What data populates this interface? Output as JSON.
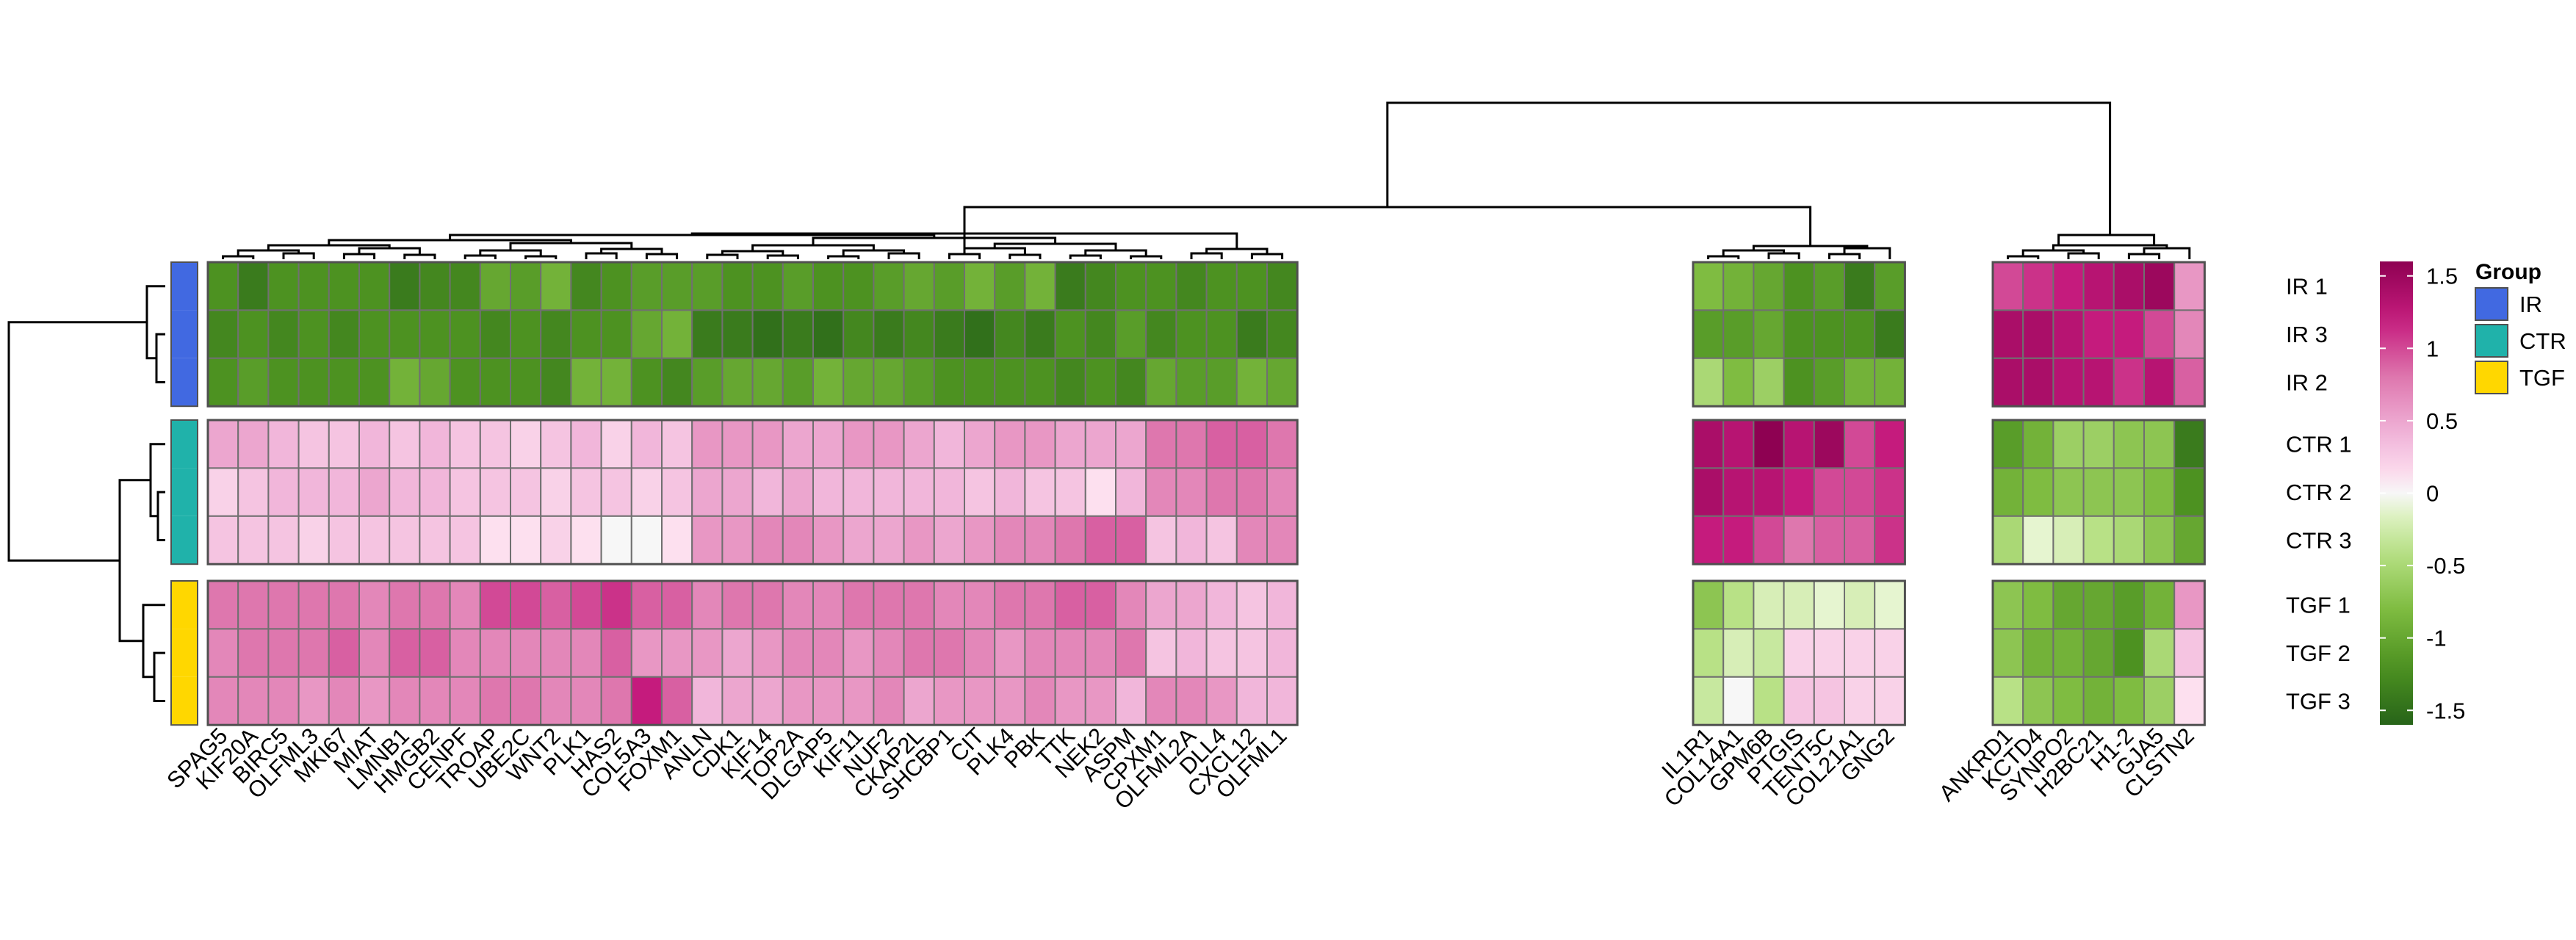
{
  "chart_data": {
    "type": "heatmap",
    "title": "",
    "xlabel": "",
    "ylabel": "",
    "columns": [
      "SPAG5",
      "KIF20A",
      "BIRC5",
      "OLFML3",
      "MKI67",
      "MIAT",
      "LMNB1",
      "HMGB2",
      "CENPF",
      "TROAP",
      "UBE2C",
      "WNT2",
      "PLK1",
      "HAS2",
      "COL5A3",
      "FOXM1",
      "ANLN",
      "CDK1",
      "KIF14",
      "TOP2A",
      "DLGAP5",
      "KIF11",
      "NUF2",
      "CKAP2L",
      "SHCBP1",
      "CIT",
      "PLK4",
      "PBK",
      "TTK",
      "NEK2",
      "ASPM",
      "CPXM1",
      "OLFML2A",
      "DLL4",
      "CXCL12",
      "OLFML1",
      "IL1R1",
      "COL14A1",
      "GPM6B",
      "PTGIS",
      "TENT5C",
      "COL21A1",
      "GNG2",
      "ANKRD1",
      "KCTD4",
      "SYNPO2",
      "H2BC21",
      "H1-2",
      "GJA5",
      "CLSTN2"
    ],
    "column_splits": [
      36,
      43
    ],
    "row_groups": [
      {
        "group": "IR",
        "rows": [
          "IR 1",
          "IR 3",
          "IR 2"
        ]
      },
      {
        "group": "CTR",
        "rows": [
          "CTR 1",
          "CTR 2",
          "CTR 3"
        ]
      },
      {
        "group": "TGF",
        "rows": [
          "TGF 1",
          "TGF 2",
          "TGF 3"
        ]
      }
    ],
    "values": {
      "IR 1": [
        -1.2,
        -1.4,
        -1.2,
        -1.2,
        -1.2,
        -1.2,
        -1.4,
        -1.3,
        -1.3,
        -1.0,
        -1.1,
        -0.9,
        -1.3,
        -1.2,
        -1.1,
        -1.1,
        -1.1,
        -1.2,
        -1.2,
        -1.1,
        -1.2,
        -1.2,
        -1.1,
        -1.0,
        -1.1,
        -0.9,
        -1.1,
        -0.9,
        -1.4,
        -1.3,
        -1.2,
        -1.2,
        -1.3,
        -1.2,
        -1.2,
        -1.3,
        -0.8,
        -0.9,
        -1.0,
        -1.2,
        -1.1,
        -1.4,
        -1.1,
        1.0,
        1.1,
        1.2,
        1.3,
        1.4,
        1.5,
        0.6
      ],
      "IR 3": [
        -1.3,
        -1.2,
        -1.3,
        -1.2,
        -1.3,
        -1.2,
        -1.2,
        -1.2,
        -1.2,
        -1.3,
        -1.2,
        -1.3,
        -1.2,
        -1.2,
        -1.0,
        -0.9,
        -1.4,
        -1.4,
        -1.5,
        -1.4,
        -1.5,
        -1.3,
        -1.4,
        -1.3,
        -1.4,
        -1.5,
        -1.3,
        -1.4,
        -1.2,
        -1.3,
        -1.1,
        -1.3,
        -1.2,
        -1.2,
        -1.4,
        -1.3,
        -1.1,
        -1.1,
        -1.0,
        -1.2,
        -1.2,
        -1.2,
        -1.4,
        1.4,
        1.4,
        1.3,
        1.2,
        1.2,
        1.0,
        0.7
      ],
      "IR 2": [
        -1.2,
        -1.1,
        -1.2,
        -1.2,
        -1.2,
        -1.2,
        -0.9,
        -1.0,
        -1.2,
        -1.2,
        -1.2,
        -1.3,
        -0.9,
        -0.9,
        -1.2,
        -1.3,
        -1.1,
        -1.0,
        -1.0,
        -1.1,
        -0.9,
        -1.0,
        -1.0,
        -1.1,
        -1.2,
        -1.2,
        -1.2,
        -1.2,
        -1.3,
        -1.2,
        -1.3,
        -1.0,
        -1.1,
        -1.1,
        -0.9,
        -1.0,
        -0.5,
        -0.8,
        -0.6,
        -1.2,
        -1.1,
        -0.9,
        -0.9,
        1.4,
        1.4,
        1.3,
        1.3,
        1.1,
        1.3,
        0.9
      ],
      "CTR 1": [
        0.5,
        0.5,
        0.4,
        0.3,
        0.3,
        0.4,
        0.3,
        0.4,
        0.3,
        0.3,
        0.2,
        0.3,
        0.4,
        0.2,
        0.4,
        0.3,
        0.6,
        0.6,
        0.6,
        0.5,
        0.5,
        0.6,
        0.6,
        0.5,
        0.4,
        0.5,
        0.6,
        0.6,
        0.5,
        0.5,
        0.5,
        0.8,
        0.8,
        0.9,
        0.9,
        0.8,
        1.4,
        1.3,
        1.6,
        1.3,
        1.5,
        1.0,
        1.2,
        -1.1,
        -0.9,
        -0.6,
        -0.6,
        -0.7,
        -0.7,
        -1.4
      ],
      "CTR 2": [
        0.2,
        0.3,
        0.4,
        0.4,
        0.4,
        0.5,
        0.4,
        0.4,
        0.3,
        0.3,
        0.3,
        0.2,
        0.3,
        0.3,
        0.2,
        0.3,
        0.5,
        0.5,
        0.4,
        0.5,
        0.4,
        0.4,
        0.4,
        0.4,
        0.4,
        0.3,
        0.4,
        0.3,
        0.3,
        0.1,
        0.4,
        0.7,
        0.7,
        0.8,
        0.8,
        0.7,
        1.4,
        1.3,
        1.3,
        1.2,
        1.0,
        1.0,
        1.1,
        -0.9,
        -0.8,
        -0.7,
        -0.7,
        -0.7,
        -0.8,
        -1.2
      ],
      "CTR 3": [
        0.3,
        0.3,
        0.3,
        0.2,
        0.3,
        0.3,
        0.3,
        0.3,
        0.3,
        0.1,
        0.1,
        0.2,
        0.1,
        0.0,
        0.0,
        0.1,
        0.6,
        0.6,
        0.7,
        0.7,
        0.6,
        0.5,
        0.5,
        0.6,
        0.5,
        0.6,
        0.7,
        0.7,
        0.8,
        0.9,
        0.9,
        0.3,
        0.4,
        0.3,
        0.7,
        0.7,
        1.2,
        1.2,
        1.0,
        0.8,
        0.9,
        0.9,
        1.1,
        -0.5,
        -0.1,
        -0.2,
        -0.4,
        -0.5,
        -0.7,
        -1.0
      ],
      "TGF 1": [
        0.8,
        0.8,
        0.8,
        0.8,
        0.8,
        0.7,
        0.8,
        0.8,
        0.7,
        1.0,
        1.0,
        0.9,
        1.0,
        1.1,
        0.9,
        0.9,
        0.7,
        0.8,
        0.8,
        0.7,
        0.7,
        0.8,
        0.8,
        0.8,
        0.7,
        0.7,
        0.8,
        0.8,
        0.9,
        0.9,
        0.7,
        0.5,
        0.5,
        0.4,
        0.3,
        0.4,
        -0.7,
        -0.4,
        -0.2,
        -0.2,
        -0.1,
        -0.2,
        -0.1,
        -0.7,
        -0.8,
        -1.0,
        -1.0,
        -1.1,
        -0.9,
        0.6
      ],
      "TGF 2": [
        0.7,
        0.8,
        0.8,
        0.8,
        0.9,
        0.7,
        0.9,
        0.9,
        0.7,
        0.7,
        0.7,
        0.7,
        0.7,
        0.9,
        0.6,
        0.6,
        0.6,
        0.5,
        0.6,
        0.7,
        0.7,
        0.6,
        0.7,
        0.8,
        0.8,
        0.7,
        0.6,
        0.7,
        0.7,
        0.7,
        0.8,
        0.3,
        0.4,
        0.3,
        0.3,
        0.4,
        -0.4,
        -0.2,
        -0.3,
        0.2,
        0.2,
        0.2,
        0.2,
        -0.7,
        -0.9,
        -0.9,
        -1.0,
        -1.2,
        -0.5,
        0.3
      ],
      "TGF 3": [
        0.7,
        0.7,
        0.7,
        0.6,
        0.7,
        0.6,
        0.7,
        0.7,
        0.7,
        0.8,
        0.8,
        0.7,
        0.7,
        0.8,
        1.2,
        0.9,
        0.4,
        0.5,
        0.5,
        0.6,
        0.6,
        0.6,
        0.7,
        0.5,
        0.6,
        0.6,
        0.6,
        0.7,
        0.6,
        0.6,
        0.4,
        0.7,
        0.7,
        0.6,
        0.4,
        0.4,
        -0.3,
        0.0,
        -0.4,
        0.3,
        0.3,
        0.2,
        0.2,
        -0.4,
        -0.7,
        -0.8,
        -0.9,
        -0.8,
        -0.6,
        0.1
      ]
    },
    "legend": {
      "ticks": [
        1.5,
        1,
        0.5,
        0,
        -0.5,
        -1,
        -1.5
      ],
      "tick_labels": [
        "1.5",
        "1",
        "0.5",
        "0",
        "-0.5",
        "-1",
        "-1.5"
      ],
      "range": [
        -1.6,
        1.6
      ],
      "colors": {
        "low": "#276419",
        "mid": "#f7f7f7",
        "high": "#8e0152"
      }
    },
    "group_legend": {
      "title": "Group",
      "items": [
        {
          "name": "IR",
          "color": "#4169e1"
        },
        {
          "name": "CTR",
          "color": "#20b2aa"
        },
        {
          "name": "TGF",
          "color": "#ffd700"
        }
      ]
    }
  }
}
